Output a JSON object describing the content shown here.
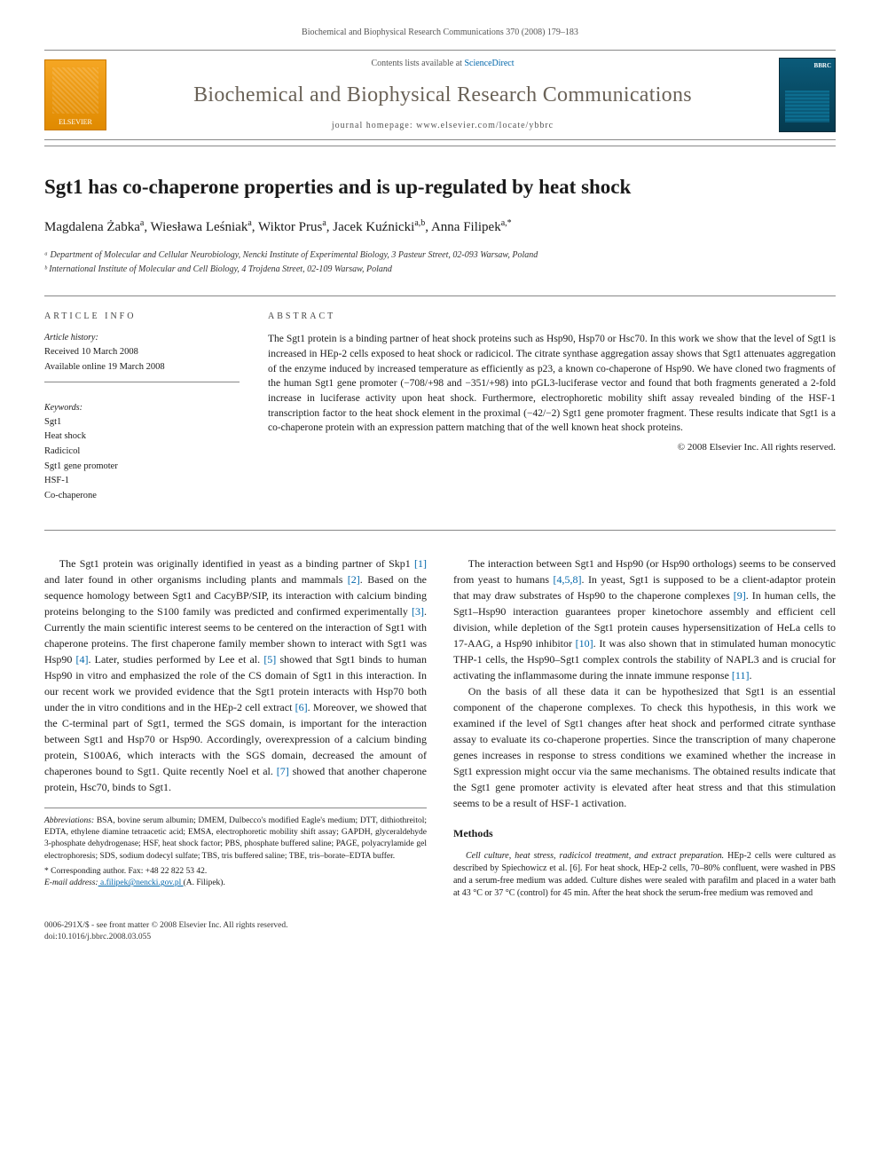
{
  "header": {
    "citation": "Biochemical and Biophysical Research Communications 370 (2008) 179–183",
    "contents_prefix": "Contents lists available at ",
    "contents_link": "ScienceDirect",
    "journal_name": "Biochemical and Biophysical Research Communications",
    "homepage_prefix": "journal homepage: ",
    "homepage_url": "www.elsevier.com/locate/ybbrc",
    "publisher_logo_label": "ELSEVIER",
    "cover_badge": "BBRC"
  },
  "article": {
    "title": "Sgt1 has co-chaperone properties and is up-regulated by heat shock",
    "authors_html": "Magdalena Żabka<sup>a</sup>, Wiesława Leśniak<sup>a</sup>, Wiktor Prus<sup>a</sup>, Jacek Kuźnicki<sup>a,b</sup>, Anna Filipek<sup>a,*</sup>",
    "affiliations": [
      "ᵃ Department of Molecular and Cellular Neurobiology, Nencki Institute of Experimental Biology, 3 Pasteur Street, 02-093 Warsaw, Poland",
      "ᵇ International Institute of Molecular and Cell Biology, 4 Trojdena Street, 02-109 Warsaw, Poland"
    ]
  },
  "info": {
    "section_head": "ARTICLE INFO",
    "history_label": "Article history:",
    "received": "Received 10 March 2008",
    "available": "Available online 19 March 2008",
    "keywords_label": "Keywords:",
    "keywords": [
      "Sgt1",
      "Heat shock",
      "Radicicol",
      "Sgt1 gene promoter",
      "HSF-1",
      "Co-chaperone"
    ]
  },
  "abstract": {
    "section_head": "ABSTRACT",
    "text": "The Sgt1 protein is a binding partner of heat shock proteins such as Hsp90, Hsp70 or Hsc70. In this work we show that the level of Sgt1 is increased in HEp-2 cells exposed to heat shock or radicicol. The citrate synthase aggregation assay shows that Sgt1 attenuates aggregation of the enzyme induced by increased temperature as efficiently as p23, a known co-chaperone of Hsp90. We have cloned two fragments of the human Sgt1 gene promoter (−708/+98 and −351/+98) into pGL3-luciferase vector and found that both fragments generated a 2-fold increase in luciferase activity upon heat shock. Furthermore, electrophoretic mobility shift assay revealed binding of the HSF-1 transcription factor to the heat shock element in the proximal (−42/−2) Sgt1 gene promoter fragment. These results indicate that Sgt1 is a co-chaperone protein with an expression pattern matching that of the well known heat shock proteins.",
    "copyright": "© 2008 Elsevier Inc. All rights reserved."
  },
  "body": {
    "left": [
      "The Sgt1 protein was originally identified in yeast as a binding partner of Skp1 [1] and later found in other organisms including plants and mammals [2]. Based on the sequence homology between Sgt1 and CacyBP/SIP, its interaction with calcium binding proteins belonging to the S100 family was predicted and confirmed experimentally [3]. Currently the main scientific interest seems to be centered on the interaction of Sgt1 with chaperone proteins. The first chaperone family member shown to interact with Sgt1 was Hsp90 [4]. Later, studies performed by Lee et al. [5] showed that Sgt1 binds to human Hsp90 in vitro and emphasized the role of the CS domain of Sgt1 in this interaction. In our recent work we provided evidence that the Sgt1 protein interacts with Hsp70 both under the in vitro conditions and in the HEp-2 cell extract [6]. Moreover, we showed that the C-terminal part of Sgt1, termed the SGS domain, is important for the interaction between Sgt1 and Hsp70 or Hsp90. Accordingly, overexpression of a calcium binding protein, S100A6, which interacts with the SGS domain, decreased the amount of chaperones bound to Sgt1. Quite recently Noel et al. [7] showed that another chaperone protein, Hsc70, binds to Sgt1."
    ],
    "right": [
      "The interaction between Sgt1 and Hsp90 (or Hsp90 orthologs) seems to be conserved from yeast to humans [4,5,8]. In yeast, Sgt1 is supposed to be a client-adaptor protein that may draw substrates of Hsp90 to the chaperone complexes [9]. In human cells, the Sgt1–Hsp90 interaction guarantees proper kinetochore assembly and efficient cell division, while depletion of the Sgt1 protein causes hypersensitization of HeLa cells to 17-AAG, a Hsp90 inhibitor [10]. It was also shown that in stimulated human monocytic THP-1 cells, the Hsp90–Sgt1 complex controls the stability of NAPL3 and is crucial for activating the inflammasome during the innate immune response [11].",
      "On the basis of all these data it can be hypothesized that Sgt1 is an essential component of the chaperone complexes. To check this hypothesis, in this work we examined if the level of Sgt1 changes after heat shock and performed citrate synthase assay to evaluate its co-chaperone properties. Since the transcription of many chaperone genes increases in response to stress conditions we examined whether the increase in Sgt1 expression might occur via the same mechanisms. The obtained results indicate that the Sgt1 gene promoter activity is elevated after heat stress and that this stimulation seems to be a result of HSF-1 activation."
    ],
    "methods_head": "Methods",
    "methods_p_lead": "Cell culture, heat stress, radicicol treatment, and extract preparation.",
    "methods_p_rest": " HEp-2 cells were cultured as described by Spiechowicz et al. [6]. For heat shock, HEp-2 cells, 70–80% confluent, were washed in PBS and a serum-free medium was added. Culture dishes were sealed with parafilm and placed in a water bath at 43 °C or 37 °C (control) for 45 min. After the heat shock the serum-free medium was removed and"
  },
  "footnotes": {
    "abbr_label": "Abbreviations:",
    "abbr_text": " BSA, bovine serum albumin; DMEM, Dulbecco's modified Eagle's medium; DTT, dithiothreitol; EDTA, ethylene diamine tetraacetic acid; EMSA, electrophoretic mobility shift assay; GAPDH, glyceraldehyde 3-phosphate dehydrogenase; HSF, heat shock factor; PBS, phosphate buffered saline; PAGE, polyacrylamide gel electrophoresis; SDS, sodium dodecyl sulfate; TBS, tris buffered saline; TBE, tris–borate–EDTA buffer.",
    "corr_label": "* Corresponding author. Fax: +48 22 822 53 42.",
    "email_label": "E-mail address:",
    "email": " a.filipek@nencki.gov.pl ",
    "email_who": "(A. Filipek)."
  },
  "footer": {
    "left1": "0006-291X/$ - see front matter © 2008 Elsevier Inc. All rights reserved.",
    "left2": "doi:10.1016/j.bbrc.2008.03.055"
  },
  "colors": {
    "link": "#0066aa",
    "journal_name": "#6a6257",
    "rule": "#888888",
    "elsevier_bg": "#f5a623",
    "cover_bg": "#0a5b7a"
  }
}
